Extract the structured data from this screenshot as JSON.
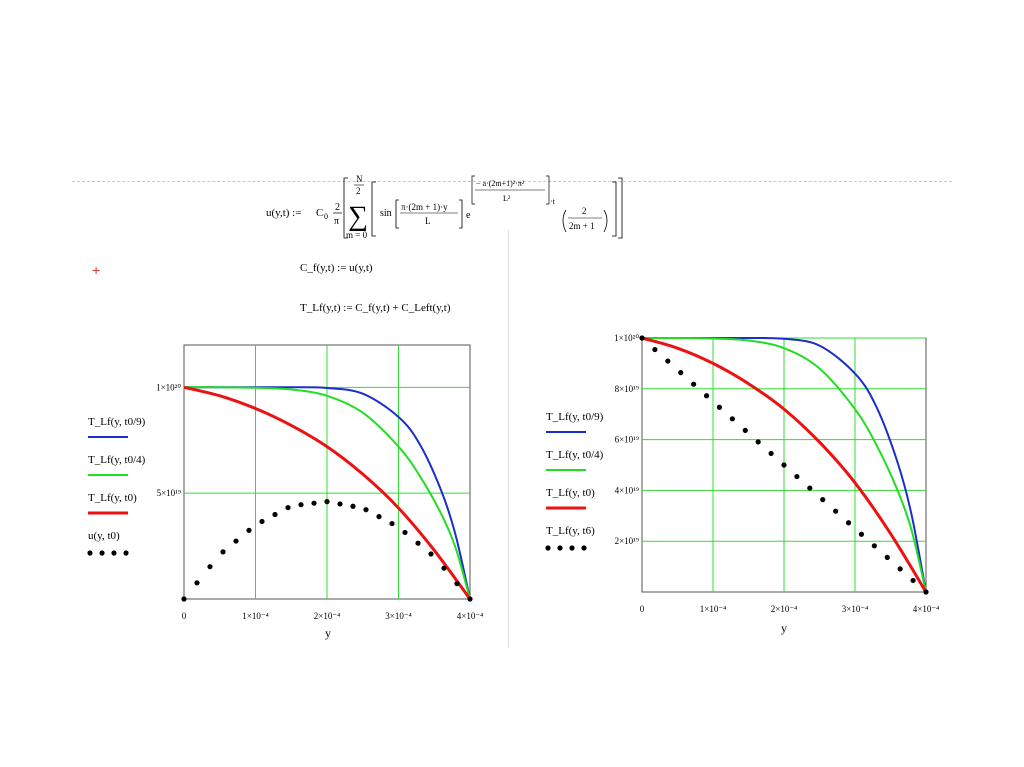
{
  "formulas": {
    "u_lhs": "u(y,t) :=",
    "u_c0": "C",
    "u_c0_sub": "0",
    "u_two_pi_num": "2",
    "u_two_pi_den": "π",
    "u_sum_top_num": "N",
    "u_sum_top_den": "2",
    "u_sum_bottom": "m = 0",
    "u_sin": "sin",
    "u_sin_num": "π·(2m + 1)·y",
    "u_sin_den": "L",
    "u_e": "e",
    "u_exp_num": "− a·(2m+1)²·π²",
    "u_exp_den": "L²",
    "u_exp_t": "·t",
    "u_frac_num": "2",
    "u_frac_den": "2m + 1",
    "cf": "C_f(y,t) := u(y,t)",
    "tlf": "T_Lf(y,t) := C_f(y,t) + C_Left(y,t)"
  },
  "cursor_mark": "+",
  "charts": [
    {
      "xlabel": "y",
      "xticks": [
        "0",
        "1×10⁻⁴",
        "2×10⁻⁴",
        "3×10⁻⁴",
        "4×10⁻⁴"
      ],
      "yticks": [
        "1×10²⁰",
        "5×10¹⁹"
      ],
      "legend": [
        {
          "label": "T_Lf(y, t0/9)",
          "color": "#1a2ecc",
          "style": "line"
        },
        {
          "label": "T_Lf(y, t0/4)",
          "color": "#22dd22",
          "style": "line"
        },
        {
          "label": "T_Lf(y, t0)",
          "color": "#ee1111",
          "style": "line"
        },
        {
          "label": "u(y, t0)",
          "color": "#000000",
          "style": "dots"
        }
      ]
    },
    {
      "xlabel": "y",
      "xticks": [
        "0",
        "1×10⁻⁴",
        "2×10⁻⁴",
        "3×10⁻⁴",
        "4×10⁻⁴"
      ],
      "yticks": [
        "1×10²⁰",
        "8×10¹⁹",
        "6×10¹⁹",
        "4×10¹⁹",
        "2×10¹⁹"
      ],
      "legend": [
        {
          "label": "T_Lf(y, t0/9)",
          "color": "#1a2ecc",
          "style": "line"
        },
        {
          "label": "T_Lf(y, t0/4)",
          "color": "#22dd22",
          "style": "line"
        },
        {
          "label": "T_Lf(y, t0)",
          "color": "#ee1111",
          "style": "line"
        },
        {
          "label": "T_Lf(y, t6)",
          "color": "#000000",
          "style": "dots"
        }
      ]
    }
  ],
  "chart_data": [
    {
      "type": "line",
      "xlabel": "y",
      "ylabel": "",
      "xlim": [
        0,
        0.0004
      ],
      "ylim": [
        0,
        1.2e+20
      ],
      "grid": true,
      "legend_position": "left",
      "series": [
        {
          "name": "T_Lf(y, t0/9)",
          "color": "#1a2ecc",
          "style": "line",
          "x": [
            0,
            5e-05,
            0.0001,
            0.00015,
            0.0002,
            0.00025,
            0.0003,
            0.00033,
            0.00036,
            0.00038,
            0.0004
          ],
          "y": [
            1e+20,
            1e+20,
            1e+20,
            1e+20,
            9.97e+19,
            9.7e+19,
            8.6e+19,
            7.3e+19,
            5.1e+19,
            3e+19,
            0
          ]
        },
        {
          "name": "T_Lf(y, t0/4)",
          "color": "#22dd22",
          "style": "line",
          "x": [
            0,
            5e-05,
            0.0001,
            0.00015,
            0.0002,
            0.00025,
            0.0003,
            0.00033,
            0.00036,
            0.00038,
            0.0004
          ],
          "y": [
            1e+20,
            1e+20,
            9.98e+19,
            9.9e+19,
            9.6e+19,
            8.8e+19,
            7.2e+19,
            5.8e+19,
            4e+19,
            2.4e+19,
            0
          ]
        },
        {
          "name": "T_Lf(y, t0)",
          "color": "#ee1111",
          "style": "line",
          "x": [
            0,
            5e-05,
            0.0001,
            0.00015,
            0.0002,
            0.00025,
            0.0003,
            0.00035,
            0.0004
          ],
          "y": [
            1e+20,
            9.6e+19,
            9e+19,
            8.2e+19,
            7.2e+19,
            5.9e+19,
            4.3e+19,
            2.3e+19,
            0
          ]
        },
        {
          "name": "u(y, t0)",
          "color": "#000000",
          "style": "dots",
          "x": [
            0,
            5e-05,
            0.0001,
            0.00015,
            0.0002,
            0.00025,
            0.0003,
            0.00035,
            0.0004
          ],
          "y": [
            0,
            2.1e+19,
            3.5e+19,
            4.4e+19,
            4.6e+19,
            4.3e+19,
            3.4e+19,
            2e+19,
            0
          ]
        }
      ]
    },
    {
      "type": "line",
      "xlabel": "y",
      "ylabel": "",
      "xlim": [
        0,
        0.0004
      ],
      "ylim": [
        0,
        1e+20
      ],
      "grid": true,
      "legend_position": "left",
      "series": [
        {
          "name": "T_Lf(y, t0/9)",
          "color": "#1a2ecc",
          "style": "line",
          "x": [
            0,
            5e-05,
            0.0001,
            0.00015,
            0.0002,
            0.00025,
            0.0003,
            0.00033,
            0.00036,
            0.00038,
            0.0004
          ],
          "y": [
            1e+20,
            1e+20,
            1e+20,
            1e+20,
            9.97e+19,
            9.7e+19,
            8.6e+19,
            7.3e+19,
            5.1e+19,
            3e+19,
            0
          ]
        },
        {
          "name": "T_Lf(y, t0/4)",
          "color": "#22dd22",
          "style": "line",
          "x": [
            0,
            5e-05,
            0.0001,
            0.00015,
            0.0002,
            0.00025,
            0.0003,
            0.00033,
            0.00036,
            0.00038,
            0.0004
          ],
          "y": [
            1e+20,
            1e+20,
            9.98e+19,
            9.9e+19,
            9.6e+19,
            8.8e+19,
            7.2e+19,
            5.8e+19,
            4e+19,
            2.4e+19,
            0
          ]
        },
        {
          "name": "T_Lf(y, t0)",
          "color": "#ee1111",
          "style": "line",
          "x": [
            0,
            5e-05,
            0.0001,
            0.00015,
            0.0002,
            0.00025,
            0.0003,
            0.00035,
            0.0004
          ],
          "y": [
            1e+20,
            9.6e+19,
            9e+19,
            8.2e+19,
            7.2e+19,
            5.9e+19,
            4.3e+19,
            2.3e+19,
            0
          ]
        },
        {
          "name": "T_Lf(y, t6)",
          "color": "#000000",
          "style": "dots",
          "x": [
            0,
            0.0001,
            0.0002,
            0.0003,
            0.0004
          ],
          "y": [
            1e+20,
            7.5e+19,
            5e+19,
            2.5e+19,
            0
          ]
        }
      ]
    }
  ]
}
